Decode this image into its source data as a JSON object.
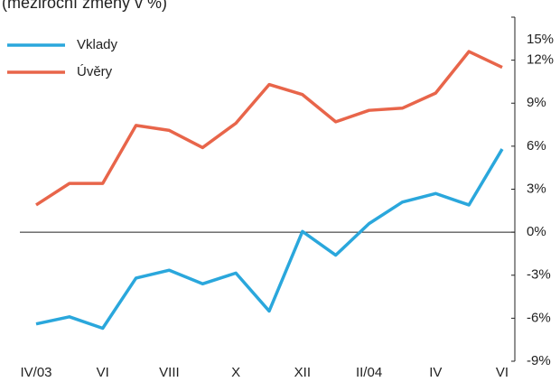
{
  "chart_data": {
    "type": "line",
    "title": "(meziroční změny v %)",
    "categories": [
      "IV/03",
      null,
      "VI",
      null,
      "VIII",
      null,
      "X",
      null,
      "XII",
      null,
      "II/04",
      null,
      "IV",
      null,
      "VI"
    ],
    "series": [
      {
        "name": "Vklady",
        "color": "#2aa7dc",
        "values": [
          -6.4,
          -5.9,
          -6.7,
          -3.2,
          -2.65,
          -3.6,
          -2.85,
          -5.5,
          0.05,
          -1.6,
          0.6,
          2.1,
          2.7,
          1.9,
          5.8
        ]
      },
      {
        "name": "Úvěry",
        "color": "#e8654a",
        "values": [
          1.9,
          3.4,
          3.4,
          7.45,
          7.1,
          5.9,
          7.6,
          10.3,
          9.6,
          7.7,
          8.5,
          8.65,
          9.7,
          12.6,
          11.5
        ]
      }
    ],
    "ylim": [
      -9,
      15
    ],
    "yticks": [
      {
        "value": 15,
        "label": "15%"
      },
      {
        "value": 12,
        "label": "12%"
      },
      {
        "value": 9,
        "label": "9%"
      },
      {
        "value": 6,
        "label": "6%"
      },
      {
        "value": 3,
        "label": "3%"
      },
      {
        "value": 0,
        "label": "0%"
      },
      {
        "value": -3,
        "label": "-3%"
      },
      {
        "value": -6,
        "label": "-6%"
      },
      {
        "value": -9,
        "label": "-9%"
      }
    ],
    "legend": "upper-left"
  }
}
